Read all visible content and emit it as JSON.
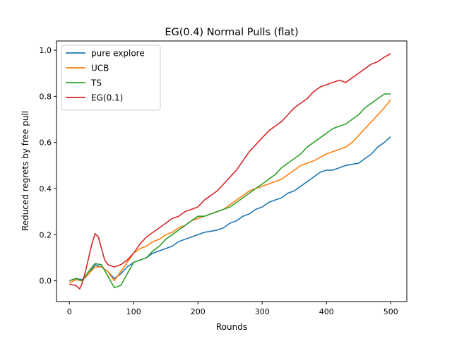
{
  "chart_data": {
    "type": "line",
    "title": "EG(0.4) Normal Pulls (flat)",
    "xlabel": "Rounds",
    "ylabel": "Reduced regrets by free pull",
    "xlim": [
      -20,
      525
    ],
    "ylim": [
      -0.09,
      1.04
    ],
    "xticks": [
      0,
      100,
      200,
      300,
      400,
      500
    ],
    "yticks": [
      0.0,
      0.2,
      0.4,
      0.6,
      0.8,
      1.0
    ],
    "xtick_labels": [
      "0",
      "100",
      "200",
      "300",
      "400",
      "500"
    ],
    "ytick_labels": [
      "0.0",
      "0.2",
      "0.4",
      "0.6",
      "0.8",
      "1.0"
    ],
    "grid": false,
    "legend_position": "top-left",
    "series": [
      {
        "name": "pure explore",
        "color": "#1f77b4",
        "points": [
          [
            0,
            0.0
          ],
          [
            10,
            0.01
          ],
          [
            20,
            0.005
          ],
          [
            30,
            0.03
          ],
          [
            40,
            0.07
          ],
          [
            50,
            0.06
          ],
          [
            60,
            0.04
          ],
          [
            70,
            0.01
          ],
          [
            80,
            0.03
          ],
          [
            90,
            0.06
          ],
          [
            100,
            0.08
          ],
          [
            110,
            0.09
          ],
          [
            120,
            0.1
          ],
          [
            130,
            0.12
          ],
          [
            140,
            0.13
          ],
          [
            150,
            0.14
          ],
          [
            160,
            0.15
          ],
          [
            170,
            0.17
          ],
          [
            180,
            0.18
          ],
          [
            190,
            0.19
          ],
          [
            200,
            0.2
          ],
          [
            210,
            0.21
          ],
          [
            220,
            0.215
          ],
          [
            230,
            0.22
          ],
          [
            240,
            0.23
          ],
          [
            250,
            0.25
          ],
          [
            260,
            0.26
          ],
          [
            270,
            0.28
          ],
          [
            280,
            0.29
          ],
          [
            290,
            0.31
          ],
          [
            300,
            0.32
          ],
          [
            310,
            0.34
          ],
          [
            320,
            0.35
          ],
          [
            330,
            0.36
          ],
          [
            340,
            0.38
          ],
          [
            350,
            0.39
          ],
          [
            360,
            0.41
          ],
          [
            370,
            0.43
          ],
          [
            380,
            0.45
          ],
          [
            390,
            0.47
          ],
          [
            400,
            0.48
          ],
          [
            410,
            0.48
          ],
          [
            420,
            0.49
          ],
          [
            430,
            0.5
          ],
          [
            440,
            0.505
          ],
          [
            450,
            0.51
          ],
          [
            460,
            0.53
          ],
          [
            470,
            0.55
          ],
          [
            480,
            0.58
          ],
          [
            490,
            0.6
          ],
          [
            500,
            0.625
          ]
        ]
      },
      {
        "name": "UCB",
        "color": "#ff7f0e",
        "points": [
          [
            0,
            -0.01
          ],
          [
            10,
            0.005
          ],
          [
            20,
            0.0
          ],
          [
            30,
            0.03
          ],
          [
            40,
            0.06
          ],
          [
            50,
            0.06
          ],
          [
            60,
            0.04
          ],
          [
            70,
            0.0
          ],
          [
            80,
            0.04
          ],
          [
            90,
            0.08
          ],
          [
            100,
            0.12
          ],
          [
            110,
            0.14
          ],
          [
            120,
            0.15
          ],
          [
            130,
            0.17
          ],
          [
            140,
            0.18
          ],
          [
            150,
            0.2
          ],
          [
            160,
            0.21
          ],
          [
            170,
            0.23
          ],
          [
            180,
            0.24
          ],
          [
            190,
            0.26
          ],
          [
            200,
            0.27
          ],
          [
            210,
            0.28
          ],
          [
            220,
            0.29
          ],
          [
            230,
            0.3
          ],
          [
            240,
            0.31
          ],
          [
            250,
            0.33
          ],
          [
            260,
            0.35
          ],
          [
            270,
            0.37
          ],
          [
            280,
            0.39
          ],
          [
            290,
            0.4
          ],
          [
            300,
            0.41
          ],
          [
            310,
            0.42
          ],
          [
            320,
            0.43
          ],
          [
            330,
            0.44
          ],
          [
            340,
            0.46
          ],
          [
            350,
            0.48
          ],
          [
            360,
            0.5
          ],
          [
            370,
            0.51
          ],
          [
            380,
            0.52
          ],
          [
            390,
            0.535
          ],
          [
            400,
            0.55
          ],
          [
            410,
            0.56
          ],
          [
            420,
            0.57
          ],
          [
            430,
            0.58
          ],
          [
            440,
            0.6
          ],
          [
            450,
            0.63
          ],
          [
            460,
            0.66
          ],
          [
            470,
            0.69
          ],
          [
            480,
            0.72
          ],
          [
            490,
            0.75
          ],
          [
            500,
            0.785
          ]
        ]
      },
      {
        "name": "TS",
        "color": "#2ca02c",
        "points": [
          [
            0,
            0.0
          ],
          [
            10,
            0.01
          ],
          [
            20,
            0.0
          ],
          [
            30,
            0.04
          ],
          [
            40,
            0.075
          ],
          [
            50,
            0.07
          ],
          [
            60,
            0.02
          ],
          [
            70,
            -0.03
          ],
          [
            80,
            -0.02
          ],
          [
            90,
            0.03
          ],
          [
            100,
            0.08
          ],
          [
            110,
            0.09
          ],
          [
            120,
            0.1
          ],
          [
            130,
            0.13
          ],
          [
            140,
            0.15
          ],
          [
            150,
            0.18
          ],
          [
            160,
            0.2
          ],
          [
            170,
            0.22
          ],
          [
            180,
            0.24
          ],
          [
            190,
            0.26
          ],
          [
            200,
            0.28
          ],
          [
            210,
            0.28
          ],
          [
            220,
            0.29
          ],
          [
            230,
            0.3
          ],
          [
            240,
            0.31
          ],
          [
            250,
            0.32
          ],
          [
            260,
            0.34
          ],
          [
            270,
            0.36
          ],
          [
            280,
            0.38
          ],
          [
            290,
            0.4
          ],
          [
            300,
            0.42
          ],
          [
            310,
            0.44
          ],
          [
            320,
            0.46
          ],
          [
            330,
            0.49
          ],
          [
            340,
            0.51
          ],
          [
            350,
            0.53
          ],
          [
            360,
            0.55
          ],
          [
            370,
            0.58
          ],
          [
            380,
            0.6
          ],
          [
            390,
            0.62
          ],
          [
            400,
            0.64
          ],
          [
            410,
            0.66
          ],
          [
            420,
            0.67
          ],
          [
            430,
            0.68
          ],
          [
            440,
            0.7
          ],
          [
            450,
            0.72
          ],
          [
            460,
            0.75
          ],
          [
            470,
            0.77
          ],
          [
            480,
            0.79
          ],
          [
            490,
            0.81
          ],
          [
            500,
            0.81
          ]
        ]
      },
      {
        "name": "EG(0.1)",
        "color": "#d62728",
        "points": [
          [
            0,
            -0.015
          ],
          [
            10,
            -0.02
          ],
          [
            16,
            -0.035
          ],
          [
            20,
            -0.01
          ],
          [
            25,
            0.04
          ],
          [
            30,
            0.1
          ],
          [
            35,
            0.16
          ],
          [
            40,
            0.205
          ],
          [
            45,
            0.19
          ],
          [
            50,
            0.14
          ],
          [
            55,
            0.09
          ],
          [
            60,
            0.07
          ],
          [
            70,
            0.06
          ],
          [
            80,
            0.07
          ],
          [
            90,
            0.09
          ],
          [
            100,
            0.12
          ],
          [
            110,
            0.16
          ],
          [
            120,
            0.19
          ],
          [
            130,
            0.21
          ],
          [
            140,
            0.23
          ],
          [
            150,
            0.25
          ],
          [
            160,
            0.27
          ],
          [
            170,
            0.28
          ],
          [
            180,
            0.3
          ],
          [
            190,
            0.31
          ],
          [
            200,
            0.32
          ],
          [
            210,
            0.35
          ],
          [
            220,
            0.37
          ],
          [
            230,
            0.39
          ],
          [
            240,
            0.42
          ],
          [
            250,
            0.45
          ],
          [
            260,
            0.48
          ],
          [
            270,
            0.52
          ],
          [
            280,
            0.56
          ],
          [
            290,
            0.59
          ],
          [
            300,
            0.62
          ],
          [
            310,
            0.65
          ],
          [
            320,
            0.67
          ],
          [
            330,
            0.69
          ],
          [
            340,
            0.72
          ],
          [
            350,
            0.75
          ],
          [
            360,
            0.77
          ],
          [
            370,
            0.79
          ],
          [
            380,
            0.82
          ],
          [
            390,
            0.84
          ],
          [
            400,
            0.85
          ],
          [
            410,
            0.86
          ],
          [
            420,
            0.87
          ],
          [
            430,
            0.86
          ],
          [
            440,
            0.88
          ],
          [
            450,
            0.9
          ],
          [
            460,
            0.92
          ],
          [
            470,
            0.94
          ],
          [
            480,
            0.95
          ],
          [
            490,
            0.97
          ],
          [
            500,
            0.985
          ]
        ]
      }
    ]
  }
}
